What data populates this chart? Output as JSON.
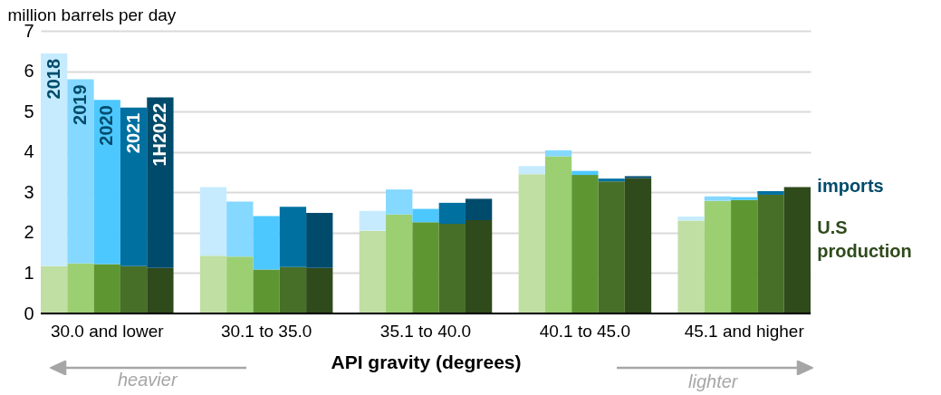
{
  "chart_data": {
    "type": "bar",
    "ylabel": "million barrels per day",
    "xlabel": "API gravity (degrees)",
    "categories": [
      null,
      null,
      "30.0 and lower",
      null,
      null,
      null,
      null,
      null,
      "30.1 to 35.0",
      null,
      null,
      null,
      null,
      null,
      "35.1 to 40.0",
      null,
      null,
      null,
      null,
      null,
      "40.1 to 45.0",
      null,
      null,
      null,
      null,
      null,
      "45.1 and higher",
      null,
      null
    ],
    "stacked": true,
    "ylim": [
      0,
      7
    ],
    "yticks": [
      0,
      1,
      2,
      3,
      4,
      5,
      6,
      7
    ],
    "grid": "y",
    "series": [
      {
        "name": "U.S production",
        "colors": [
          "#c0dfa2",
          "#9ccf72",
          "#5e9732",
          "#476f28",
          "#2f4a1b",
          null,
          "#c0dfa2",
          "#9ccf72",
          "#5e9732",
          "#476f28",
          "#2f4a1b",
          null,
          "#c0dfa2",
          "#9ccf72",
          "#5e9732",
          "#476f28",
          "#2f4a1b",
          null,
          "#c0dfa2",
          "#9ccf72",
          "#5e9732",
          "#476f28",
          "#2f4a1b",
          null,
          "#c0dfa2",
          "#9ccf72",
          "#5e9732",
          "#476f28",
          "#2f4a1b"
        ],
        "values": [
          1.17,
          1.24,
          1.22,
          1.17,
          1.13,
          null,
          1.43,
          1.41,
          1.09,
          1.15,
          1.13,
          null,
          2.05,
          2.45,
          2.26,
          2.22,
          2.31,
          null,
          3.45,
          3.89,
          3.43,
          3.27,
          3.35,
          null,
          2.3,
          2.79,
          2.81,
          2.94,
          3.13
        ]
      },
      {
        "name": "imports",
        "colors": [
          "#c6ebff",
          "#85d8ff",
          "#4dc8ff",
          "#0070a0",
          "#004b6b",
          null,
          "#c6ebff",
          "#85d8ff",
          "#4dc8ff",
          "#0070a0",
          "#004b6b",
          null,
          "#c6ebff",
          "#85d8ff",
          "#4dc8ff",
          "#0070a0",
          "#004b6b",
          null,
          "#c6ebff",
          "#85d8ff",
          "#4dc8ff",
          "#0070a0",
          "#004b6b",
          null,
          "#c6ebff",
          "#85d8ff",
          "#4dc8ff",
          "#0070a0",
          "#004b6b"
        ],
        "values": [
          5.27,
          4.56,
          4.07,
          3.93,
          4.22,
          null,
          1.7,
          1.36,
          1.32,
          1.49,
          1.36,
          null,
          0.49,
          0.62,
          0.33,
          0.52,
          0.53,
          null,
          0.2,
          0.15,
          0.1,
          0.07,
          0.05,
          null,
          0.1,
          0.11,
          0.07,
          0.09,
          0
        ]
      }
    ],
    "annotations": [
      "2018",
      "2019",
      "2020",
      "2021",
      "1H2022",
      "heavier",
      "lighter"
    ]
  }
}
